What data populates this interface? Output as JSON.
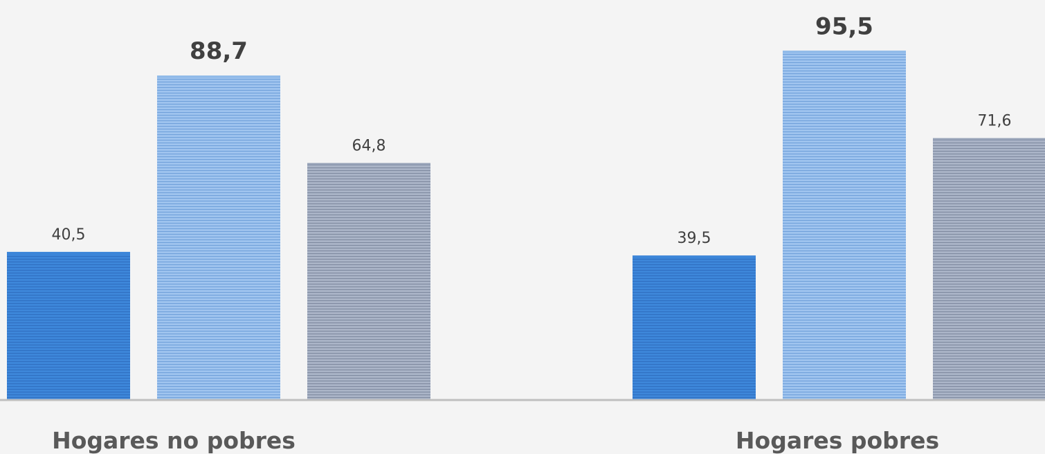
{
  "chart_data": {
    "type": "bar",
    "categories": [
      "Hogares no pobres",
      "Hogares pobres"
    ],
    "series": [
      {
        "values": [
          40.5,
          39.5
        ],
        "value_labels": [
          "40,5",
          "39,5"
        ],
        "color": "#3d86d9"
      },
      {
        "values": [
          88.7,
          95.5
        ],
        "value_labels": [
          "88,7",
          "95,5"
        ],
        "color": "#8fb9e8",
        "labels_bold": true
      },
      {
        "values": [
          64.8,
          71.6
        ],
        "value_labels": [
          "64,8",
          "71,6"
        ],
        "color": "#97a3b8"
      }
    ],
    "title": "",
    "xlabel": "",
    "ylabel": "",
    "ylim": [
      0,
      105
    ],
    "grid": false,
    "legend": "none",
    "colors": {
      "background": "#f4f4f4",
      "axis": "#bfbfbf",
      "value_label": "#404040",
      "category_label": "#595959"
    }
  }
}
